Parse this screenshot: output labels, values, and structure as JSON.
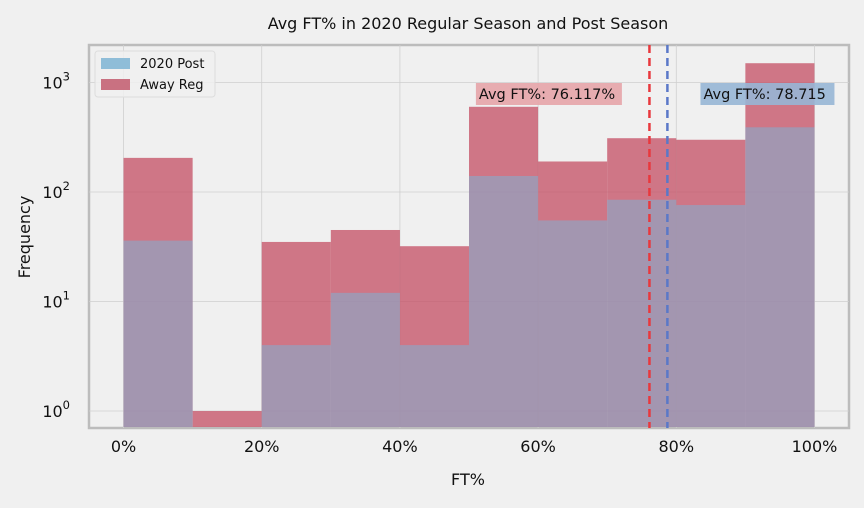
{
  "chart_data": {
    "type": "bar",
    "title": "Avg FT% in 2020 Regular Season and Post Season",
    "xlabel": "FT%",
    "ylabel": "Frequency",
    "y_scale": "log",
    "ylim": [
      0.7,
      2200
    ],
    "xlim": [
      -0.05,
      1.05
    ],
    "x_ticks": [
      {
        "value": 0.0,
        "label": "0%"
      },
      {
        "value": 0.2,
        "label": "20%"
      },
      {
        "value": 0.4,
        "label": "40%"
      },
      {
        "value": 0.6,
        "label": "60%"
      },
      {
        "value": 0.8,
        "label": "80%"
      },
      {
        "value": 1.0,
        "label": "100%"
      }
    ],
    "y_ticks": [
      {
        "value": 1,
        "base": "10",
        "exp": "0"
      },
      {
        "value": 10,
        "base": "10",
        "exp": "1"
      },
      {
        "value": 100,
        "base": "10",
        "exp": "2"
      },
      {
        "value": 1000,
        "base": "10",
        "exp": "3"
      }
    ],
    "bin_edges": [
      0.0,
      0.1,
      0.2,
      0.3,
      0.4,
      0.5,
      0.6,
      0.7,
      0.8,
      0.9,
      1.0
    ],
    "series": [
      {
        "name": "Away Reg",
        "color": "#c44e63",
        "values": [
          205,
          1,
          35,
          45,
          32,
          600,
          190,
          310,
          300,
          1500
        ]
      },
      {
        "name": "2020 Post",
        "color": "#7fb0d3",
        "values": [
          36,
          0,
          4,
          12,
          4,
          140,
          55,
          85,
          76,
          390
        ]
      }
    ],
    "reference_lines": [
      {
        "x": 0.76117,
        "color": "#e8383d",
        "label": "Avg FT%: 76.117%",
        "label_bg": "#e6a4a9"
      },
      {
        "x": 0.78715,
        "color": "#5a78c8",
        "label": "Avg FT%: 78.715",
        "label_bg": "#97b6d5"
      }
    ],
    "legend": {
      "position": "top-left",
      "items": [
        {
          "label": "2020 Post",
          "color": "#8fbdd8"
        },
        {
          "label": "Away Reg",
          "color": "#c97181"
        }
      ]
    },
    "grid": true
  }
}
